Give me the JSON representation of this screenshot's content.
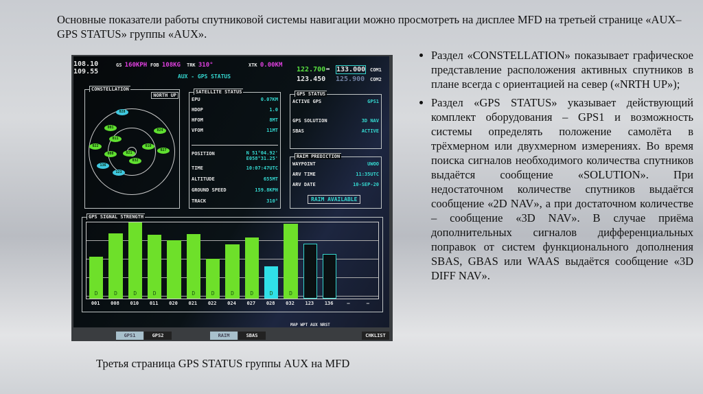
{
  "intro": "Основные показатели работы спутниковой системы навигации можно просмотреть на дисплее MFD на третьей странице «AUX–GPS STATUS» группы «AUX».",
  "bullets": [
    "Раздел «CONSTELLATION» показывает графическое представление расположения активных спутников в плане всегда с ориентацией на север («NRTH UP»);",
    "Раздел «GPS STATUS» указывает действующий комплект оборудования – GPS1 и возможность системы определять положение самолёта в трёхмерном или двухмерном измерениях. Во время поиска сигналов необходимого количества спутников выдаётся сообщение «SOLUTION». При недостаточном количестве спутников выдаётся сообщение «2D NAV», а при достаточном количестве – сообщение «3D NAV». В случае приёма дополнительных сигналов дифференциальных поправок от систем функционального дополнения SBAS, GBAS или WAAS выдаётся сообщение «3D DIFF NAV»."
  ],
  "caption": "Третья страница GPS STATUS группы AUX на MFD",
  "mfd": {
    "nav1": "108.10",
    "nav2": "109.55",
    "gs_label": "GS",
    "gs": "160KPH",
    "fob_label": "FOB",
    "fob": "108KG",
    "trk_label": "TRK",
    "trk": "310°",
    "xtk_label": "XTK",
    "xtk": "0.00KM",
    "page_title": "AUX - GPS STATUS",
    "com_active": "122.700",
    "com_swap": "↔",
    "com_standby": "133.000",
    "com1": "COM1",
    "com2_active": "123.450",
    "com2_standby": "125.900",
    "com2": "COM2",
    "constellation": {
      "title": "CONSTELLATION",
      "orientation": "NORTH UP",
      "sats": [
        {
          "id": "028",
          "c": "cyan"
        },
        {
          "id": "001",
          "c": "green"
        },
        {
          "id": "024",
          "c": "green"
        },
        {
          "id": "011",
          "c": "green"
        },
        {
          "id": "022",
          "c": "green"
        },
        {
          "id": "010",
          "c": "green"
        },
        {
          "id": "008",
          "c": "green"
        },
        {
          "id": "021",
          "c": "green"
        },
        {
          "id": "027",
          "c": "green"
        },
        {
          "id": "032",
          "c": "green"
        },
        {
          "id": "136",
          "c": "cyan"
        },
        {
          "id": "123",
          "c": "cyan"
        }
      ]
    },
    "satellite_status": {
      "title": "SATELLITE STATUS",
      "rows": [
        {
          "k": "EPU",
          "v": "0.07KM"
        },
        {
          "k": "HDOP",
          "v": "1.0"
        },
        {
          "k": "HFOM",
          "v": "8MT"
        },
        {
          "k": "VFOM",
          "v": "11MT"
        }
      ],
      "position_label": "POSITION",
      "position_lat": "N 51°04.92'",
      "position_lon": "E058°31.25'",
      "rows2": [
        {
          "k": "TIME",
          "v": "10:07:47UTC"
        },
        {
          "k": "ALTITUDE",
          "v": "655MT"
        },
        {
          "k": "GROUND SPEED",
          "v": "159.8KPH"
        },
        {
          "k": "TRACK",
          "v": "310°"
        }
      ]
    },
    "gps_status": {
      "title": "GPS STATUS",
      "rows": [
        {
          "k": "ACTIVE GPS",
          "v": "GPS1"
        },
        {
          "k": "GPS SOLUTION",
          "v": "3D NAV"
        },
        {
          "k": "SBAS",
          "v": "ACTIVE"
        }
      ]
    },
    "raim": {
      "title": "RAIM PREDICTION",
      "rows": [
        {
          "k": "WAYPOINT",
          "v": "UWOO"
        },
        {
          "k": "ARV TIME",
          "v": "11:35UTC"
        },
        {
          "k": "ARV DATE",
          "v": "10-SEP-20"
        }
      ],
      "button": "RAIM AVAILABLE"
    },
    "signal": {
      "title": "GPS SIGNAL STRENGTH",
      "bars": [
        {
          "id": "001",
          "v": 0.55,
          "d": "D",
          "t": "green"
        },
        {
          "id": "008",
          "v": 0.86,
          "d": "D",
          "t": "green"
        },
        {
          "id": "010",
          "v": 1.0,
          "d": "D",
          "t": "green"
        },
        {
          "id": "011",
          "v": 0.84,
          "d": "D",
          "t": "green"
        },
        {
          "id": "020",
          "v": 0.77,
          "d": "",
          "t": "green"
        },
        {
          "id": "021",
          "v": 0.85,
          "d": "D",
          "t": "green"
        },
        {
          "id": "022",
          "v": 0.52,
          "d": "D",
          "t": "green"
        },
        {
          "id": "024",
          "v": 0.71,
          "d": "D",
          "t": "green"
        },
        {
          "id": "027",
          "v": 0.8,
          "d": "D",
          "t": "green"
        },
        {
          "id": "028",
          "v": 0.42,
          "d": "D",
          "t": "cyan"
        },
        {
          "id": "032",
          "v": 0.98,
          "d": "D",
          "t": "green"
        },
        {
          "id": "123",
          "v": 0.72,
          "d": "",
          "t": "outline"
        },
        {
          "id": "136",
          "v": 0.59,
          "d": "",
          "t": "outline"
        },
        {
          "id": "—",
          "v": 0,
          "d": "",
          "t": "none"
        },
        {
          "id": "—",
          "v": 0,
          "d": "",
          "t": "none"
        }
      ]
    },
    "page_group": "MAP WPT AUX NRST",
    "softkeys": [
      "GPS1",
      "GPS2",
      "RAIM",
      "SBAS",
      "CHKLIST"
    ]
  }
}
